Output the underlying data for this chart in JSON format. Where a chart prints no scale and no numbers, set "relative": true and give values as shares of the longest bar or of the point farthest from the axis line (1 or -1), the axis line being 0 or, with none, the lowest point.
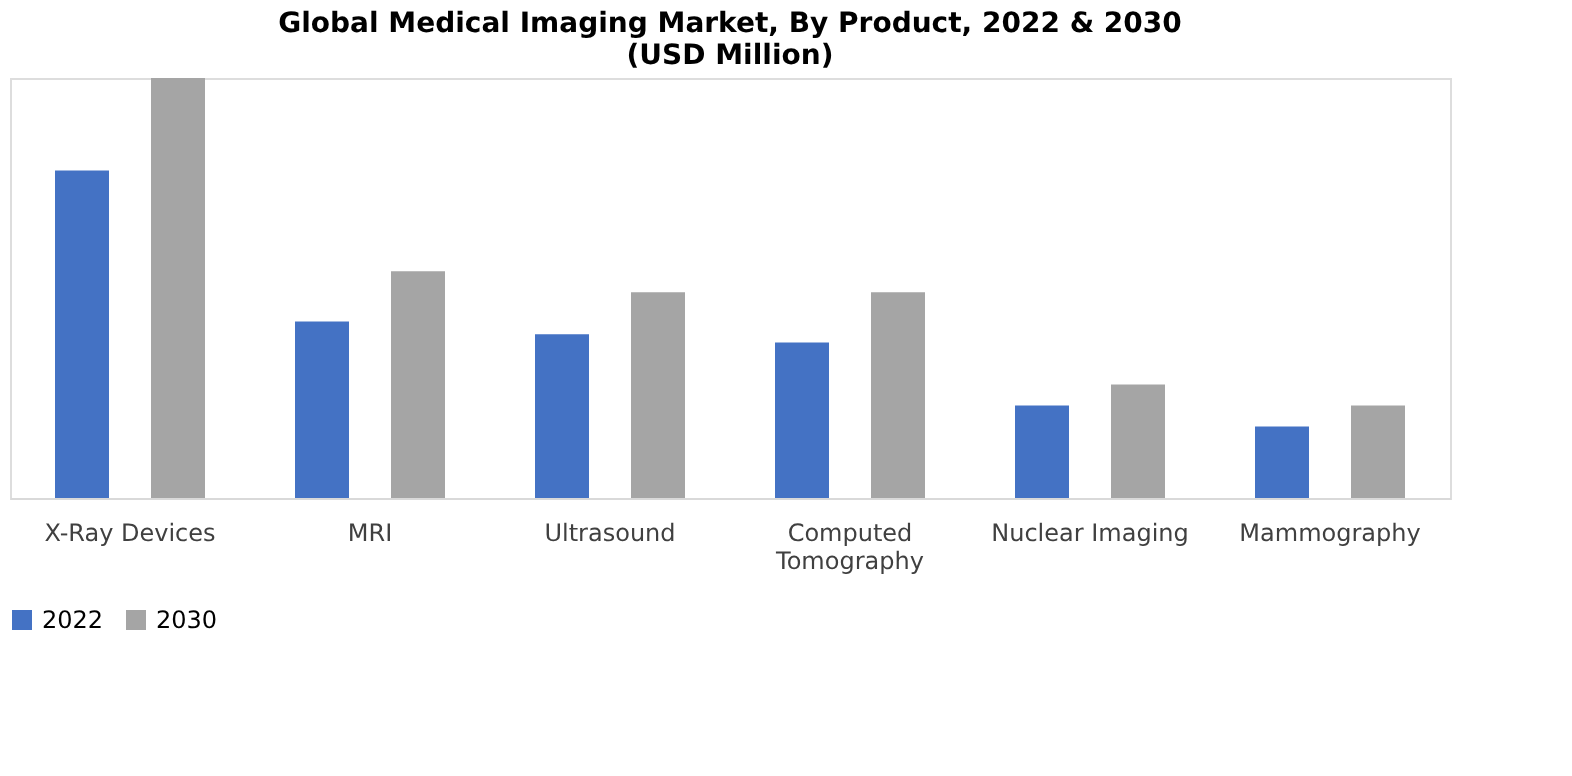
{
  "chart_data": {
    "type": "bar",
    "title": "Global Medical Imaging Market, By Product, 2022 & 2030\n(USD Million)",
    "categories": [
      "X-Ray Devices",
      "MRI",
      "Ultrasound",
      "Computed Tomography",
      "Nuclear Imaging",
      "Mammography"
    ],
    "relative": true,
    "series": [
      {
        "name": "2022",
        "color": "#4472c4",
        "values": [
          0.78,
          0.42,
          0.39,
          0.37,
          0.22,
          0.17
        ]
      },
      {
        "name": "2030",
        "color": "#a5a5a5",
        "values": [
          1,
          0.54,
          0.49,
          0.49,
          0.27,
          0.22
        ]
      }
    ],
    "legend": "bottom",
    "grid": false
  }
}
